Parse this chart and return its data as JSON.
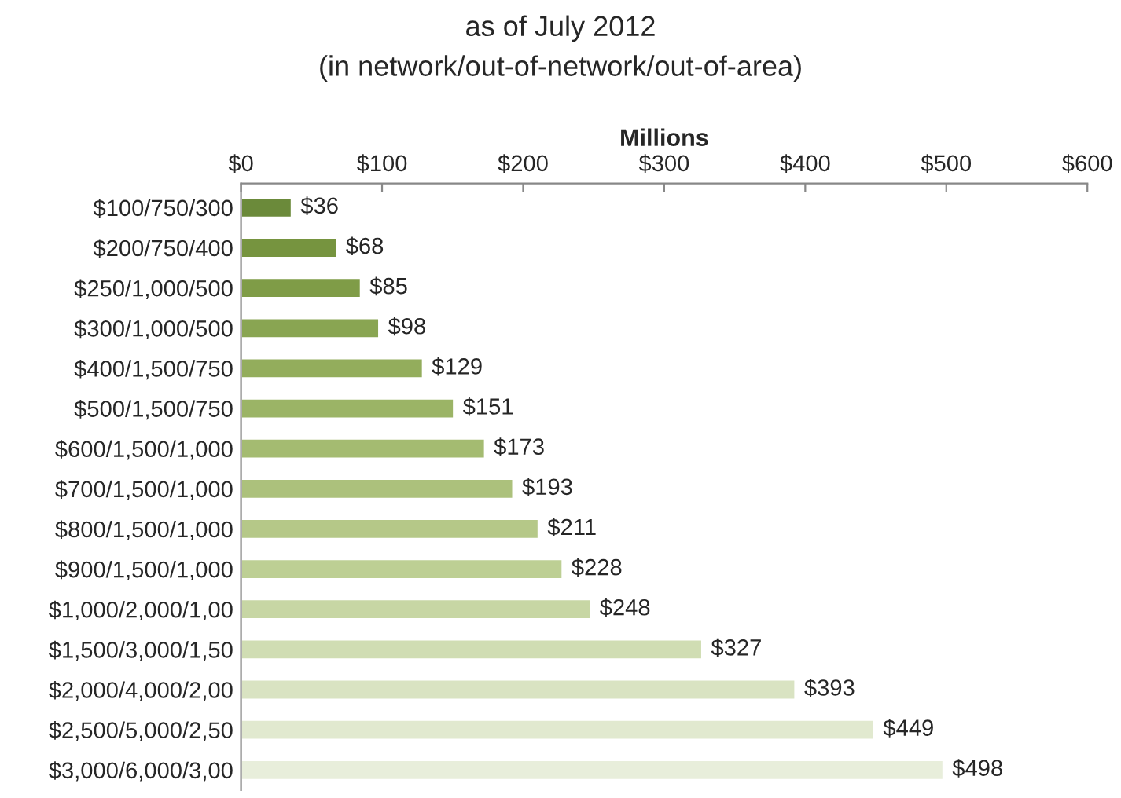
{
  "chart_data": {
    "type": "bar",
    "orientation": "horizontal",
    "title": "as of July 2012",
    "subtitle": "(in network/out-of-network/out-of-area)",
    "xlabel": "Millions",
    "categories": [
      "$100/750/300",
      "$200/750/400",
      "$250/1,000/500",
      "$300/1,000/500",
      "$400/1,500/750",
      "$500/1,500/750",
      "$600/1,500/1,000",
      "$700/1,500/1,000",
      "$800/1,500/1,000",
      "$900/1,500/1,000",
      "$1,000/2,000/1,00",
      "$1,500/3,000/1,50",
      "$2,000/4,000/2,00",
      "$2,500/5,000/2,50",
      "$3,000/6,000/3,00"
    ],
    "values": [
      36,
      68,
      85,
      98,
      129,
      151,
      173,
      193,
      211,
      228,
      248,
      327,
      393,
      449,
      498
    ],
    "value_labels": [
      "$36",
      "$68",
      "$85",
      "$98",
      "$129",
      "$151",
      "$173",
      "$193",
      "$211",
      "$228",
      "$248",
      "$327",
      "$393",
      "$449",
      "$498"
    ],
    "colors": [
      "#6b8a3a",
      "#76943f",
      "#7f9c47",
      "#89a552",
      "#93ad5c",
      "#9bb466",
      "#a4bb71",
      "#acc17c",
      "#b5c888",
      "#bdcf94",
      "#c7d6a4",
      "#d0ddb3",
      "#d9e3c2",
      "#e1e9cf",
      "#e8eedb"
    ],
    "xlim": [
      0,
      600
    ],
    "xticks": [
      {
        "value": 0,
        "label": "$0"
      },
      {
        "value": 100,
        "label": "$100"
      },
      {
        "value": 200,
        "label": "$200"
      },
      {
        "value": 300,
        "label": "$300"
      },
      {
        "value": 400,
        "label": "$400"
      },
      {
        "value": 500,
        "label": "$500"
      },
      {
        "value": 600,
        "label": "$600"
      }
    ],
    "grid": false,
    "legend": false
  }
}
